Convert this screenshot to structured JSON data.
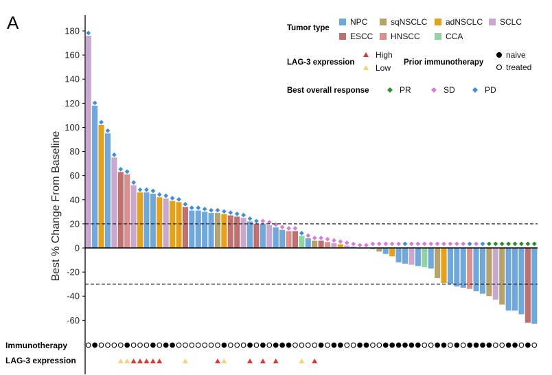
{
  "figure": {
    "panel_letter": "A"
  },
  "chart_data": {
    "type": "bar",
    "ylabel": "Best % Change From Baseline",
    "ylim": [
      -75,
      190
    ],
    "yticks": [
      -60,
      -40,
      -20,
      0,
      20,
      40,
      60,
      80,
      100,
      120,
      140,
      160,
      180
    ],
    "reference_lines": [
      20,
      -30
    ],
    "colors": {
      "NPC": "#6fa8dc",
      "sqNSCLC": "#b5a36b",
      "adNSCLC": "#e3a21a",
      "SCLC": "#c9a8cf",
      "ESCC": "#c0706e",
      "HNSCC": "#dd8f8d",
      "CCA": "#93d3a2",
      "PR": "#2e8b2e",
      "SD": "#d77fd6",
      "PD": "#3d8ee0",
      "High": "#d93838",
      "Low": "#f2d27a"
    },
    "values": [
      176,
      118,
      102,
      95,
      75,
      63,
      61,
      52,
      46,
      46,
      45,
      42,
      41,
      39,
      38,
      34,
      31,
      31,
      30,
      29,
      29,
      28,
      27,
      26,
      25,
      22,
      20,
      20,
      19,
      17,
      15,
      14,
      14,
      10,
      8,
      6,
      6,
      5,
      4,
      3,
      2,
      1,
      0,
      0,
      -1,
      -3,
      -5,
      -7,
      -12,
      -13,
      -14,
      -15,
      -16,
      -17,
      -25,
      -29,
      -30,
      -32,
      -33,
      -34,
      -36,
      -38,
      -40,
      -43,
      -47,
      -52,
      -52,
      -55,
      -62,
      -63
    ],
    "tumor_type": [
      "SCLC",
      "NPC",
      "adNSCLC",
      "NPC",
      "SCLC",
      "ESCC",
      "HNSCC",
      "SCLC",
      "adNSCLC",
      "NPC",
      "NPC",
      "adNSCLC",
      "SCLC",
      "adNSCLC",
      "adNSCLC",
      "ESCC",
      "NPC",
      "NPC",
      "NPC",
      "NPC",
      "sqNSCLC",
      "adNSCLC",
      "ESCC",
      "ESCC",
      "SCLC",
      "NPC",
      "ESCC",
      "NPC",
      "SCLC",
      "NPC",
      "NPC",
      "HNSCC",
      "ESCC",
      "CCA",
      "NPC",
      "sqNSCLC",
      "ESCC",
      "HNSCC",
      "SCLC",
      "adNSCLC",
      "SCLC",
      "NPC",
      "NPC",
      "NPC",
      "NPC",
      "sqNSCLC",
      "NPC",
      "adNSCLC",
      "NPC",
      "NPC",
      "SCLC",
      "NPC",
      "CCA",
      "NPC",
      "sqNSCLC",
      "adNSCLC",
      "NPC",
      "NPC",
      "NPC",
      "HNSCC",
      "NPC",
      "NPC",
      "sqNSCLC",
      "SCLC",
      "sqNSCLC",
      "NPC",
      "NPC",
      "NPC",
      "ESCC",
      "NPC"
    ],
    "response": [
      "PD",
      "PD",
      "PD",
      "PD",
      "PD",
      "PD",
      "PD",
      "PD",
      "PD",
      "PD",
      "PD",
      "PD",
      "PD",
      "PD",
      "PD",
      "PD",
      "PD",
      "PD",
      "PD",
      "PD",
      "PD",
      "PD",
      "PD",
      "PD",
      "PD",
      "PD",
      "PD",
      "SD",
      "SD",
      "SD",
      "SD",
      "SD",
      "SD",
      "PD",
      "SD",
      "SD",
      "SD",
      "SD",
      "SD",
      "SD",
      "SD",
      "SD",
      "SD",
      "SD",
      "SD",
      "SD",
      "SD",
      "SD",
      "SD",
      "PD",
      "SD",
      "SD",
      "SD",
      "SD",
      "SD",
      "SD",
      "SD",
      "SD",
      "SD",
      "PD",
      "SD",
      "PD",
      "PR",
      "PR",
      "PR",
      "PR",
      "PR",
      "PR",
      "PR",
      "PR"
    ],
    "immunotherapy": [
      "treated",
      "naive",
      "treated",
      "treated",
      "treated",
      "treated",
      "naive",
      "treated",
      "treated",
      "treated",
      "naive",
      "treated",
      "naive",
      "naive",
      "treated",
      "treated",
      "treated",
      "treated",
      "treated",
      "treated",
      "treated",
      "naive",
      "treated",
      "treated",
      "treated",
      "naive",
      "treated",
      "naive",
      "treated",
      "naive",
      "naive",
      "naive",
      "treated",
      "treated",
      "treated",
      "treated",
      "naive",
      "treated",
      "naive",
      "naive",
      "treated",
      "treated",
      "naive",
      "naive",
      "treated",
      "treated",
      "naive",
      "naive",
      "naive",
      "naive",
      "naive",
      "naive",
      "treated",
      "treated",
      "naive",
      "naive",
      "treated",
      "naive",
      "treated",
      "naive",
      "naive",
      "naive",
      "naive",
      "treated",
      "treated",
      "naive",
      "naive",
      "treated",
      "naive",
      "treated"
    ],
    "lag3": [
      "",
      "",
      "",
      "",
      "",
      "Low",
      "Low",
      "High",
      "High",
      "High",
      "High",
      "High",
      "",
      "",
      "",
      "Low",
      "",
      "",
      "",
      "",
      "High",
      "Low",
      "",
      "",
      "",
      "High",
      "",
      "High",
      "",
      "High",
      "",
      "",
      "",
      "Low",
      "",
      "High",
      "",
      "",
      "",
      "",
      "",
      "",
      "",
      "",
      "",
      "",
      "",
      "",
      "",
      "",
      "",
      "",
      "",
      "",
      "",
      "",
      "",
      "",
      "",
      "",
      "",
      "",
      "",
      "",
      "",
      "",
      "",
      "",
      "",
      ""
    ],
    "lag3_text_rows": [
      "Immunotherapy",
      "LAG-3 expression"
    ],
    "legend": {
      "tumor_title": "Tumor type",
      "tumor_items": [
        "NPC",
        "sqNSCLC",
        "adNSCLC",
        "SCLC",
        "ESCC",
        "HNSCC",
        "CCA"
      ],
      "lag3_title": "LAG-3 expression",
      "lag3_items": [
        "High",
        "Low"
      ],
      "prior_title": "Prior immunotherapy",
      "prior_items": [
        "naive",
        "treated"
      ],
      "response_title": "Best overall response",
      "response_items": [
        "PR",
        "SD",
        "PD"
      ]
    }
  }
}
